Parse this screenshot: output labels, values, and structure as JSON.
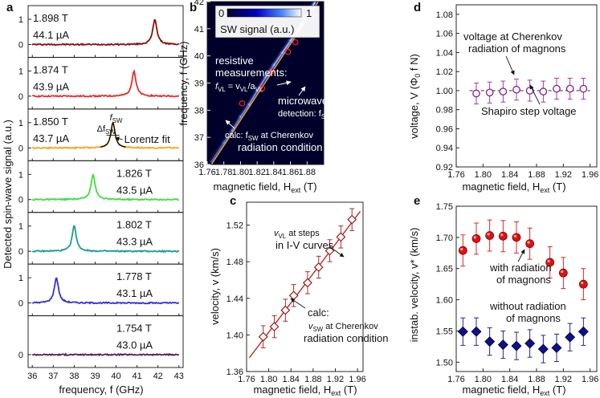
{
  "chart_data": [
    {
      "panel": "a",
      "type": "line",
      "ylabel": "Detected spin-wave signal (a.u.)",
      "xlabel": "frequency, f (GHz)",
      "xlim": [
        35.8,
        43.2
      ],
      "xticks": [
        "36",
        "37",
        "38",
        "39",
        "40",
        "41",
        "42",
        "43"
      ],
      "ytick_top": "1",
      "ytick_zero": "0",
      "series": [
        {
          "field": "1.898 T",
          "current": "44.1 µA",
          "peak_ghz": 41.85,
          "color": "#8b0f0f"
        },
        {
          "field": "1.874 T",
          "current": "43.9 µA",
          "peak_ghz": 40.85,
          "color": "#ee2a2a"
        },
        {
          "field": "1.850 T",
          "current": "43.7 µA",
          "peak_ghz": 39.85,
          "color": "#f5a623",
          "annot": {
            "width": "Δf",
            "width_sub": "SW",
            "f": "f",
            "f_sub": "SW",
            "fit": "Lorentz fit"
          }
        },
        {
          "field": "1.826 T",
          "current": "43.5 µA",
          "peak_ghz": 38.9,
          "color": "#3de03d"
        },
        {
          "field": "1.802 T",
          "current": "43.3 µA",
          "peak_ghz": 38.0,
          "color": "#1b9e8e"
        },
        {
          "field": "1.778 T",
          "current": "43.1 µA",
          "peak_ghz": 37.15,
          "color": "#3030e0"
        },
        {
          "field": "1.754 T",
          "current": "43.0 µA",
          "peak_ghz": null,
          "color": "#5a1a5a"
        }
      ]
    },
    {
      "panel": "b",
      "type": "heatmap",
      "xlabel": "magnetic field, H",
      "xlabel_sub": "ext",
      "xlabel_unit": " (T)",
      "ylabel": "frequency, f (GHz)",
      "xlim": [
        1.76,
        1.9
      ],
      "ylim": [
        36,
        42
      ],
      "xticks": [
        "1.76",
        "1.78",
        "1.80",
        "1.82",
        "1.84",
        "1.86",
        "1.88"
      ],
      "yticks": [
        "36",
        "37",
        "38",
        "39",
        "40",
        "41",
        "42"
      ],
      "colorbar": {
        "min": "0",
        "max": "1",
        "label": "SW signal (a.u.)"
      },
      "ridge_points": [
        [
          1.765,
          36.1
        ],
        [
          1.78,
          36.8
        ],
        [
          1.79,
          37.25
        ],
        [
          1.8,
          37.75
        ],
        [
          1.81,
          38.2
        ],
        [
          1.82,
          38.7
        ],
        [
          1.83,
          39.2
        ],
        [
          1.84,
          39.65
        ],
        [
          1.85,
          40.1
        ],
        [
          1.86,
          40.55
        ],
        [
          1.87,
          41.0
        ],
        [
          1.88,
          41.5
        ],
        [
          1.89,
          42.0
        ]
      ],
      "resistive_points": [
        [
          1.802,
          38.25
        ],
        [
          1.826,
          38.8
        ],
        [
          1.838,
          39.45
        ],
        [
          1.857,
          40.15
        ],
        [
          1.866,
          40.5
        ],
        [
          1.874,
          40.85
        ],
        [
          1.888,
          41.45
        ]
      ],
      "calc_line": [
        [
          1.765,
          36.0
        ],
        [
          1.9,
          42.3
        ]
      ],
      "annotations": {
        "resistive_1": "resistive",
        "resistive_2": "measurements:",
        "resistive_3": "f",
        "resistive_3_sub": "VL",
        "resistive_3_rest": " = v",
        "resistive_3_sub2": "VL",
        "resistive_3_rest2": "/a",
        "resistive_3_sub3": "VL",
        "micro_1": "microwave",
        "micro_2": "detection: f",
        "micro_2_sub": "SW",
        "calc_1": "calc: f",
        "calc_1_sub": "SW",
        "calc_1_rest": " at Cherenkov",
        "calc_2": "radiation condition"
      }
    },
    {
      "panel": "c",
      "type": "scatter",
      "xlabel": "magnetic field, H",
      "xlabel_sub": "ext",
      "xlabel_unit": " (T)",
      "ylabel": "velocity, v (km/s)",
      "xlim": [
        1.76,
        1.97
      ],
      "ylim": [
        1.36,
        1.545
      ],
      "xticks": [
        "1.76",
        "1.80",
        "1.84",
        "1.88",
        "1.92",
        "1.96"
      ],
      "yticks": [
        "1.36",
        "1.40",
        "1.44",
        "1.48",
        "1.52"
      ],
      "points": [
        [
          1.79,
          1.398
        ],
        [
          1.81,
          1.409
        ],
        [
          1.83,
          1.427
        ],
        [
          1.845,
          1.443
        ],
        [
          1.87,
          1.457
        ],
        [
          1.89,
          1.474
        ],
        [
          1.91,
          1.492
        ],
        [
          1.93,
          1.507
        ],
        [
          1.95,
          1.526
        ]
      ],
      "errors": [
        0.012,
        0.012,
        0.012,
        0.012,
        0.012,
        0.012,
        0.012,
        0.012,
        0.012
      ],
      "fit_line": [
        [
          1.765,
          1.375
        ],
        [
          1.965,
          1.535
        ]
      ],
      "annotations": {
        "vl_1": "v",
        "vl_1_sub": "VL",
        "vl_1_rest": " at steps",
        "vl_2": "in I-V curves",
        "calc_1": "calc:",
        "calc_2": "v",
        "calc_2_sub": "SW",
        "calc_2_rest": " at Cherenkov",
        "calc_3": "radiation condition"
      }
    },
    {
      "panel": "d",
      "type": "scatter",
      "xlabel": "magnetic field, H",
      "xlabel_sub": "ext",
      "xlabel_unit": " (T)",
      "ylabel": "voltage, V (Φ",
      "ylabel_sub": "0",
      "ylabel_rest": " f N)",
      "xlim": [
        1.76,
        1.97
      ],
      "ylim": [
        0.92,
        1.09
      ],
      "xticks": [
        "1.76",
        "1.80",
        "1.84",
        "1.88",
        "1.92",
        "1.96"
      ],
      "yticks": [
        "0.92",
        "0.94",
        "0.96",
        "0.98",
        "1.00",
        "1.02",
        "1.04",
        "1.06",
        "1.08"
      ],
      "reference": 1.0,
      "points": [
        [
          1.79,
          0.997
        ],
        [
          1.81,
          0.998
        ],
        [
          1.83,
          0.999
        ],
        [
          1.85,
          1.001
        ],
        [
          1.87,
          1.0
        ],
        [
          1.89,
          0.999
        ],
        [
          1.91,
          1.002
        ],
        [
          1.93,
          1.002
        ],
        [
          1.95,
          1.002
        ]
      ],
      "errors": [
        0.011,
        0.011,
        0.011,
        0.011,
        0.011,
        0.011,
        0.011,
        0.011,
        0.011
      ],
      "annotations": {
        "cheren_1": "voltage at Cherenkov",
        "cheren_2": "radiation of magnons",
        "shapiro": "Shapiro step voltage"
      }
    },
    {
      "panel": "e",
      "type": "scatter",
      "xlabel": "magnetic field, H",
      "xlabel_sub": "ext",
      "xlabel_unit": " (T)",
      "ylabel": "instab. velocity, v* (km/s)",
      "xlim": [
        1.76,
        1.97
      ],
      "ylim": [
        1.485,
        1.75
      ],
      "xticks": [
        "1.76",
        "1.80",
        "1.84",
        "1.88",
        "1.92",
        "1.96"
      ],
      "yticks": [
        "1.50",
        "1.55",
        "1.60",
        "1.65",
        "1.70",
        "1.75"
      ],
      "series": [
        {
          "name": "with radiation of magnons",
          "color": "#e01010",
          "points": [
            [
              1.77,
              1.679
            ],
            [
              1.79,
              1.698
            ],
            [
              1.81,
              1.703
            ],
            [
              1.83,
              1.702
            ],
            [
              1.85,
              1.7
            ],
            [
              1.87,
              1.69
            ],
            [
              1.9,
              1.66
            ],
            [
              1.92,
              1.643
            ],
            [
              1.95,
              1.625
            ]
          ],
          "errors": [
            0.025,
            0.025,
            0.025,
            0.025,
            0.025,
            0.025,
            0.025,
            0.025,
            0.025
          ]
        },
        {
          "name": "without radiation of magnons",
          "color": "#10108a",
          "points": [
            [
              1.77,
              1.549
            ],
            [
              1.79,
              1.549
            ],
            [
              1.81,
              1.533
            ],
            [
              1.83,
              1.528
            ],
            [
              1.85,
              1.526
            ],
            [
              1.87,
              1.53
            ],
            [
              1.89,
              1.521
            ],
            [
              1.91,
              1.523
            ],
            [
              1.93,
              1.54
            ],
            [
              1.95,
              1.549
            ]
          ],
          "errors": [
            0.022,
            0.022,
            0.022,
            0.022,
            0.022,
            0.022,
            0.022,
            0.022,
            0.022,
            0.022
          ]
        }
      ],
      "annotations": {
        "with_1": "with radiation",
        "with_2": "of magnons",
        "without_1": "without radiation",
        "without_2": "of magnons"
      }
    }
  ],
  "panel_labels": [
    "a",
    "b",
    "c",
    "d",
    "e"
  ]
}
